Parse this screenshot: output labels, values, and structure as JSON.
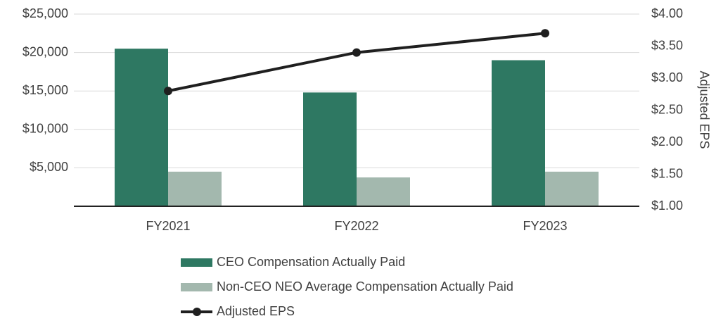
{
  "chart_data": {
    "type": "bar",
    "categories": [
      "FY2021",
      "FY2022",
      "FY2023"
    ],
    "series": [
      {
        "name": "CEO Compensation Actually Paid",
        "color": "#2e7862",
        "values": [
          20500,
          14800,
          19000
        ]
      },
      {
        "name": "Non-CEO NEO Average Compensation Actually Paid",
        "color": "#a3b8ae",
        "values": [
          4500,
          3750,
          4500
        ]
      },
      {
        "name": "Adjusted EPS",
        "type": "line",
        "axis": "y2",
        "color": "#1f1f1f",
        "values": [
          2.8,
          3.4,
          3.7
        ]
      }
    ],
    "ylim": [
      0,
      25000
    ],
    "yticks": [
      {
        "value": 5000,
        "label": "$5,000"
      },
      {
        "value": 10000,
        "label": "$10,000"
      },
      {
        "value": 15000,
        "label": "$15,000"
      },
      {
        "value": 20000,
        "label": "$20,000"
      },
      {
        "value": 25000,
        "label": "$25,000"
      }
    ],
    "y2label": "Adjusted EPS",
    "y2lim": [
      1,
      4
    ],
    "y2ticks": [
      {
        "value": 1,
        "label": "$1.00"
      },
      {
        "value": 1.5,
        "label": "$1.50"
      },
      {
        "value": 2,
        "label": "$2.00"
      },
      {
        "value": 2.5,
        "label": "$2.50"
      },
      {
        "value": 3,
        "label": "$3.00"
      },
      {
        "value": 3.5,
        "label": "$3.50"
      },
      {
        "value": 4,
        "label": "$4.00"
      }
    ],
    "grid": true,
    "legend": "bottom"
  }
}
